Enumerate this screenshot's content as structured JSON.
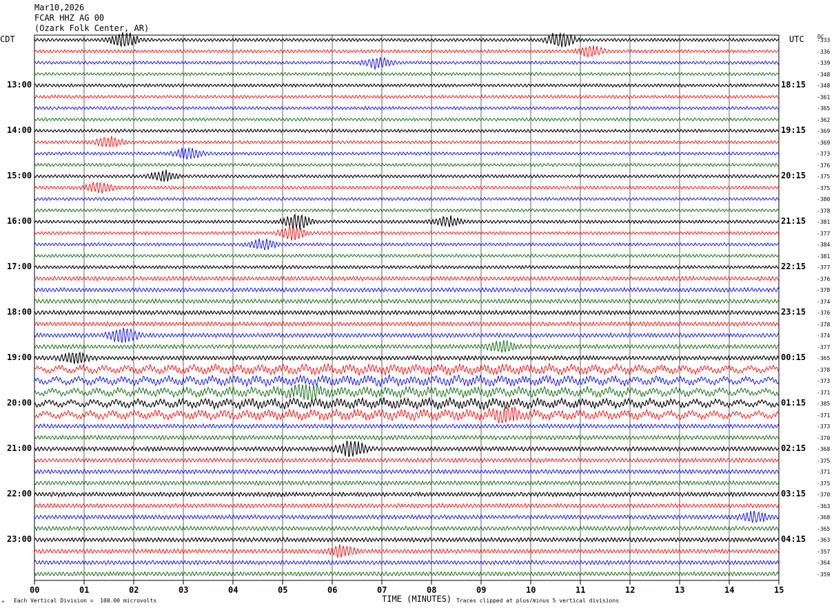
{
  "header": {
    "date": "Mar10,2026",
    "station": "FCAR HHZ AG 00",
    "location": "(Ozark Folk Center, AR)"
  },
  "left_tz": "CDT",
  "right_tz": "UTC",
  "dc_label": "DC",
  "footer": {
    "scale_note": "Each Vertical Division =  100.00 microvolts",
    "xlabel": "TIME (MINUTES)",
    "clip_note": "Traces clipped at plus/minus 5 vertical divisions",
    "corner_mark": "ᴹ"
  },
  "colors": {
    "cycle": [
      "#000000",
      "#ff0000",
      "#0000ff",
      "#006400"
    ],
    "grid": "#000000"
  },
  "chart_data": {
    "type": "line",
    "xlabel": "TIME (MINUTES)",
    "x_range": [
      0,
      15
    ],
    "x_ticks": [
      "00",
      "01",
      "02",
      "03",
      "04",
      "05",
      "06",
      "07",
      "08",
      "09",
      "10",
      "11",
      "12",
      "13",
      "14",
      "15"
    ],
    "trace_count": 48,
    "minutes_per_trace": 15,
    "left_hour_labels": [
      {
        "trace": 4,
        "text": "13:00"
      },
      {
        "trace": 8,
        "text": "14:00"
      },
      {
        "trace": 12,
        "text": "15:00"
      },
      {
        "trace": 16,
        "text": "16:00"
      },
      {
        "trace": 20,
        "text": "17:00"
      },
      {
        "trace": 24,
        "text": "18:00"
      },
      {
        "trace": 28,
        "text": "19:00"
      },
      {
        "trace": 32,
        "text": "20:00"
      },
      {
        "trace": 36,
        "text": "21:00"
      },
      {
        "trace": 40,
        "text": "22:00"
      },
      {
        "trace": 44,
        "text": "23:00"
      }
    ],
    "right_hour_labels": [
      {
        "trace": 4,
        "text": "18:15"
      },
      {
        "trace": 8,
        "text": "19:15"
      },
      {
        "trace": 12,
        "text": "20:15"
      },
      {
        "trace": 16,
        "text": "21:15"
      },
      {
        "trace": 20,
        "text": "22:15"
      },
      {
        "trace": 24,
        "text": "23:15"
      },
      {
        "trace": 28,
        "text": "00:15"
      },
      {
        "trace": 32,
        "text": "01:15"
      },
      {
        "trace": 36,
        "text": "02:15"
      },
      {
        "trace": 40,
        "text": "03:15"
      },
      {
        "trace": 44,
        "text": "04:15"
      }
    ],
    "dc_offsets": [
      "-333",
      "-336",
      "-339",
      "-348",
      "-348",
      "-361",
      "-365",
      "-362",
      "-369",
      "-369",
      "-373",
      "-376",
      "-375",
      "-375",
      "-380",
      "-378",
      "-381",
      "-377",
      "-384",
      "-381",
      "-377",
      "-376",
      "-378",
      "-374",
      "-376",
      "-378",
      "-374",
      "-377",
      "-365",
      "-378",
      "-373",
      "-371",
      "-385",
      "-371",
      "-373",
      "-370",
      "-368",
      "-375",
      "-371",
      "-375",
      "-370",
      "-363",
      "-368",
      "-365",
      "-363",
      "-357",
      "-364",
      "-359"
    ],
    "events": [
      {
        "trace": 0,
        "minute": 1.8,
        "amplitude": 3.0
      },
      {
        "trace": 0,
        "minute": 10.6,
        "amplitude": 3.0
      },
      {
        "trace": 1,
        "minute": 11.2,
        "amplitude": 2.0
      },
      {
        "trace": 2,
        "minute": 6.9,
        "amplitude": 2.0
      },
      {
        "trace": 9,
        "minute": 1.5,
        "amplitude": 2.0
      },
      {
        "trace": 10,
        "minute": 3.1,
        "amplitude": 2.0
      },
      {
        "trace": 12,
        "minute": 2.6,
        "amplitude": 2.0
      },
      {
        "trace": 13,
        "minute": 1.3,
        "amplitude": 2.0
      },
      {
        "trace": 16,
        "minute": 5.3,
        "amplitude": 3.0
      },
      {
        "trace": 16,
        "minute": 8.3,
        "amplitude": 2.0
      },
      {
        "trace": 17,
        "minute": 5.2,
        "amplitude": 2.5
      },
      {
        "trace": 18,
        "minute": 4.6,
        "amplitude": 2.0
      },
      {
        "trace": 26,
        "minute": 1.8,
        "amplitude": 3.0
      },
      {
        "trace": 27,
        "minute": 9.4,
        "amplitude": 2.0
      },
      {
        "trace": 28,
        "minute": 0.8,
        "amplitude": 2.0
      },
      {
        "trace": 31,
        "minute": 5.5,
        "amplitude": 2.5
      },
      {
        "trace": 33,
        "minute": 9.5,
        "amplitude": 2.5
      },
      {
        "trace": 36,
        "minute": 6.4,
        "amplitude": 3.0
      },
      {
        "trace": 42,
        "minute": 14.5,
        "amplitude": 2.0
      },
      {
        "trace": 45,
        "minute": 6.2,
        "amplitude": 2.0
      }
    ]
  }
}
